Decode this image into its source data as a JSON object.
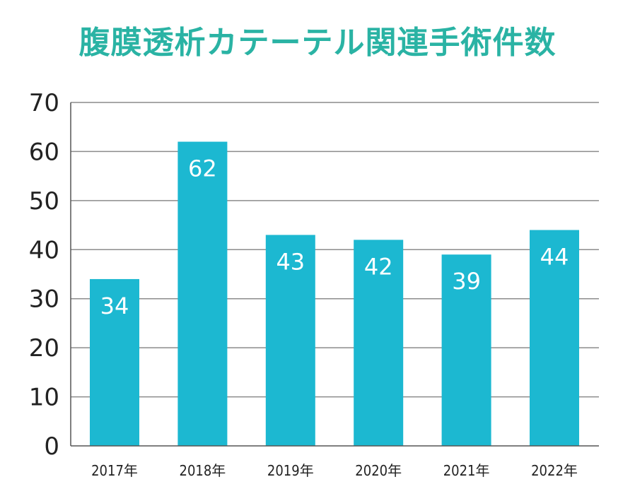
{
  "chart_data": {
    "type": "bar",
    "title": "腹膜透析カテーテル関連手術件数",
    "categories": [
      "2017年",
      "2018年",
      "2019年",
      "2020年",
      "2021年",
      "2022年"
    ],
    "values": [
      34,
      62,
      43,
      42,
      39,
      44
    ],
    "ylim": [
      0,
      70
    ],
    "yticks": [
      "0",
      "10",
      "20",
      "30",
      "40",
      "50",
      "60",
      "70"
    ],
    "grid": true,
    "colors": {
      "bar": "#1cb8d1",
      "title": "#2ab3a4",
      "grid": "#8c8c8c",
      "axis": "#555555"
    }
  }
}
